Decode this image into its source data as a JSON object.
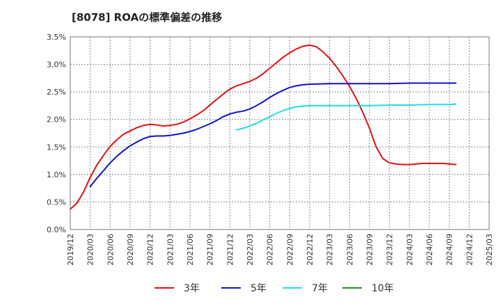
{
  "chart_data": {
    "type": "line",
    "title": "[8078]  ROAの標準偏差の推移",
    "xlabel": "",
    "ylabel": "",
    "ylim": [
      0,
      0.035
    ],
    "y_ticks": [
      {
        "value": 0.0,
        "label": "0.0%"
      },
      {
        "value": 0.005,
        "label": "0.5%"
      },
      {
        "value": 0.01,
        "label": "1.0%"
      },
      {
        "value": 0.015,
        "label": "1.5%"
      },
      {
        "value": 0.02,
        "label": "2.0%"
      },
      {
        "value": 0.025,
        "label": "2.5%"
      },
      {
        "value": 0.03,
        "label": "3.0%"
      },
      {
        "value": 0.035,
        "label": "3.5%"
      }
    ],
    "x_ticks": [
      "2019/12",
      "2020/03",
      "2020/06",
      "2020/09",
      "2020/12",
      "2021/03",
      "2021/06",
      "2021/09",
      "2021/12",
      "2022/03",
      "2022/06",
      "2022/09",
      "2022/12",
      "2023/03",
      "2023/06",
      "2023/09",
      "2023/12",
      "2024/03",
      "2024/06",
      "2024/09",
      "2024/12",
      "2025/03"
    ],
    "grid": true,
    "legend_position": "bottom",
    "series": [
      {
        "name": "3年",
        "color": "#dd1111",
        "points": [
          [
            "2019/12",
            0.0037
          ],
          [
            "2020/01",
            0.0048
          ],
          [
            "2020/02",
            0.0068
          ],
          [
            "2020/03",
            0.0095
          ],
          [
            "2020/04",
            0.0117
          ],
          [
            "2020/05",
            0.0135
          ],
          [
            "2020/06",
            0.0151
          ],
          [
            "2020/07",
            0.0163
          ],
          [
            "2020/08",
            0.0173
          ],
          [
            "2020/09",
            0.0179
          ],
          [
            "2020/10",
            0.0185
          ],
          [
            "2020/11",
            0.0189
          ],
          [
            "2020/12",
            0.0191
          ],
          [
            "2021/01",
            0.019
          ],
          [
            "2021/02",
            0.0188
          ],
          [
            "2021/03",
            0.0189
          ],
          [
            "2021/04",
            0.0191
          ],
          [
            "2021/05",
            0.0195
          ],
          [
            "2021/06",
            0.0201
          ],
          [
            "2021/07",
            0.0208
          ],
          [
            "2021/08",
            0.0216
          ],
          [
            "2021/09",
            0.0226
          ],
          [
            "2021/10",
            0.0236
          ],
          [
            "2021/11",
            0.0246
          ],
          [
            "2021/12",
            0.0255
          ],
          [
            "2022/01",
            0.0261
          ],
          [
            "2022/02",
            0.0265
          ],
          [
            "2022/03",
            0.0269
          ],
          [
            "2022/04",
            0.0275
          ],
          [
            "2022/05",
            0.0283
          ],
          [
            "2022/06",
            0.0293
          ],
          [
            "2022/07",
            0.0303
          ],
          [
            "2022/08",
            0.0313
          ],
          [
            "2022/09",
            0.0321
          ],
          [
            "2022/10",
            0.0328
          ],
          [
            "2022/11",
            0.0333
          ],
          [
            "2022/12",
            0.0335
          ],
          [
            "2023/01",
            0.0332
          ],
          [
            "2023/02",
            0.0323
          ],
          [
            "2023/03",
            0.0311
          ],
          [
            "2023/04",
            0.0296
          ],
          [
            "2023/05",
            0.0279
          ],
          [
            "2023/06",
            0.026
          ],
          [
            "2023/07",
            0.0238
          ],
          [
            "2023/08",
            0.0213
          ],
          [
            "2023/09",
            0.0184
          ],
          [
            "2023/10",
            0.015
          ],
          [
            "2023/11",
            0.0129
          ],
          [
            "2023/12",
            0.0121
          ],
          [
            "2024/01",
            0.0119
          ],
          [
            "2024/02",
            0.0118
          ],
          [
            "2024/03",
            0.0118
          ],
          [
            "2024/04",
            0.0119
          ],
          [
            "2024/05",
            0.012
          ],
          [
            "2024/06",
            0.012
          ],
          [
            "2024/07",
            0.012
          ],
          [
            "2024/08",
            0.012
          ],
          [
            "2024/09",
            0.0119
          ],
          [
            "2024/10",
            0.0118
          ]
        ]
      },
      {
        "name": "5年",
        "color": "#1111cc",
        "points": [
          [
            "2020/03",
            0.0078
          ],
          [
            "2020/04",
            0.0093
          ],
          [
            "2020/05",
            0.0107
          ],
          [
            "2020/06",
            0.0121
          ],
          [
            "2020/07",
            0.0133
          ],
          [
            "2020/08",
            0.0143
          ],
          [
            "2020/09",
            0.0152
          ],
          [
            "2020/10",
            0.0159
          ],
          [
            "2020/11",
            0.0165
          ],
          [
            "2020/12",
            0.0169
          ],
          [
            "2021/01",
            0.017
          ],
          [
            "2021/02",
            0.017
          ],
          [
            "2021/03",
            0.0171
          ],
          [
            "2021/04",
            0.0173
          ],
          [
            "2021/05",
            0.0175
          ],
          [
            "2021/06",
            0.0178
          ],
          [
            "2021/07",
            0.0182
          ],
          [
            "2021/08",
            0.0187
          ],
          [
            "2021/09",
            0.0192
          ],
          [
            "2021/10",
            0.0198
          ],
          [
            "2021/11",
            0.0205
          ],
          [
            "2021/12",
            0.021
          ],
          [
            "2022/01",
            0.0213
          ],
          [
            "2022/02",
            0.0215
          ],
          [
            "2022/03",
            0.0219
          ],
          [
            "2022/04",
            0.0225
          ],
          [
            "2022/05",
            0.0232
          ],
          [
            "2022/06",
            0.024
          ],
          [
            "2022/07",
            0.0247
          ],
          [
            "2022/08",
            0.0253
          ],
          [
            "2022/09",
            0.0258
          ],
          [
            "2022/10",
            0.0261
          ],
          [
            "2022/11",
            0.0263
          ],
          [
            "2022/12",
            0.0264
          ],
          [
            "2023/03",
            0.0265
          ],
          [
            "2023/06",
            0.0265
          ],
          [
            "2023/09",
            0.0265
          ],
          [
            "2023/12",
            0.0265
          ],
          [
            "2024/03",
            0.0266
          ],
          [
            "2024/06",
            0.0266
          ],
          [
            "2024/09",
            0.0266
          ],
          [
            "2024/10",
            0.0266
          ]
        ]
      },
      {
        "name": "7年",
        "color": "#22dddd",
        "points": [
          [
            "2022/01",
            0.0181
          ],
          [
            "2022/02",
            0.0184
          ],
          [
            "2022/03",
            0.0188
          ],
          [
            "2022/04",
            0.0193
          ],
          [
            "2022/05",
            0.0199
          ],
          [
            "2022/06",
            0.0205
          ],
          [
            "2022/07",
            0.0211
          ],
          [
            "2022/08",
            0.0216
          ],
          [
            "2022/09",
            0.022
          ],
          [
            "2022/10",
            0.0223
          ],
          [
            "2022/11",
            0.0224
          ],
          [
            "2022/12",
            0.0225
          ],
          [
            "2023/03",
            0.0225
          ],
          [
            "2023/06",
            0.0225
          ],
          [
            "2023/09",
            0.0225
          ],
          [
            "2023/12",
            0.0226
          ],
          [
            "2024/03",
            0.0226
          ],
          [
            "2024/06",
            0.0227
          ],
          [
            "2024/09",
            0.0227
          ],
          [
            "2024/10",
            0.0228
          ]
        ]
      },
      {
        "name": "10年",
        "color": "#228822",
        "points": []
      }
    ]
  }
}
